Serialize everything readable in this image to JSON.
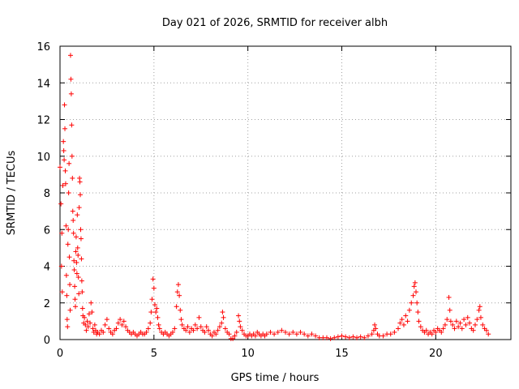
{
  "chart_data": {
    "type": "scatter",
    "title": "Day 021 of 2026, SRMTID for receiver albh",
    "xlabel": "GPS time / hours",
    "ylabel": "SRMTID / TECUs",
    "xlim": [
      0,
      24
    ],
    "ylim": [
      0,
      16
    ],
    "xticks": [
      0,
      5,
      10,
      15,
      20
    ],
    "yticks": [
      0,
      2,
      4,
      6,
      8,
      10,
      12,
      14,
      16
    ],
    "grid": true,
    "marker": "+",
    "color": "#ff0000",
    "series": [
      {
        "name": "SRMTID",
        "points": [
          [
            0.0,
            9.4
          ],
          [
            0.05,
            7.4
          ],
          [
            0.08,
            4.0
          ],
          [
            0.1,
            5.8
          ],
          [
            0.12,
            2.6
          ],
          [
            0.15,
            8.4
          ],
          [
            0.18,
            10.8
          ],
          [
            0.2,
            10.3
          ],
          [
            0.22,
            9.8
          ],
          [
            0.24,
            12.8
          ],
          [
            0.26,
            11.5
          ],
          [
            0.28,
            9.2
          ],
          [
            0.3,
            8.5
          ],
          [
            0.32,
            6.2
          ],
          [
            0.34,
            3.5
          ],
          [
            0.36,
            2.4
          ],
          [
            0.38,
            1.1
          ],
          [
            0.4,
            0.7
          ],
          [
            0.42,
            5.2
          ],
          [
            0.44,
            6.0
          ],
          [
            0.46,
            8.0
          ],
          [
            0.48,
            9.6
          ],
          [
            0.5,
            4.5
          ],
          [
            0.52,
            3.0
          ],
          [
            0.54,
            1.6
          ],
          [
            0.56,
            15.5
          ],
          [
            0.58,
            14.2
          ],
          [
            0.6,
            13.4
          ],
          [
            0.62,
            11.7
          ],
          [
            0.64,
            10.0
          ],
          [
            0.66,
            8.8
          ],
          [
            0.68,
            7.0
          ],
          [
            0.7,
            6.5
          ],
          [
            0.72,
            5.8
          ],
          [
            0.74,
            4.3
          ],
          [
            0.76,
            3.8
          ],
          [
            0.78,
            2.9
          ],
          [
            0.8,
            2.2
          ],
          [
            0.82,
            1.8
          ],
          [
            0.84,
            4.8
          ],
          [
            0.86,
            5.6
          ],
          [
            0.88,
            4.2
          ],
          [
            0.9,
            3.6
          ],
          [
            0.92,
            6.8
          ],
          [
            0.94,
            5.0
          ],
          [
            0.96,
            4.6
          ],
          [
            0.98,
            3.4
          ],
          [
            1.0,
            2.5
          ],
          [
            1.02,
            7.2
          ],
          [
            1.04,
            8.8
          ],
          [
            1.06,
            8.6
          ],
          [
            1.08,
            7.9
          ],
          [
            1.1,
            6.0
          ],
          [
            1.12,
            5.5
          ],
          [
            1.14,
            4.4
          ],
          [
            1.16,
            3.2
          ],
          [
            1.18,
            2.6
          ],
          [
            1.2,
            1.7
          ],
          [
            1.22,
            1.3
          ],
          [
            1.26,
            0.9
          ],
          [
            1.3,
            1.2
          ],
          [
            1.35,
            0.8
          ],
          [
            1.4,
            0.5
          ],
          [
            1.45,
            1.0
          ],
          [
            1.5,
            0.7
          ],
          [
            1.55,
            1.4
          ],
          [
            1.6,
            0.9
          ],
          [
            1.65,
            2.0
          ],
          [
            1.7,
            1.5
          ],
          [
            1.75,
            0.6
          ],
          [
            1.8,
            0.4
          ],
          [
            1.85,
            0.8
          ],
          [
            1.9,
            0.5
          ],
          [
            1.95,
            0.3
          ],
          [
            2.0,
            0.4
          ],
          [
            2.1,
            0.3
          ],
          [
            2.2,
            0.5
          ],
          [
            2.3,
            0.4
          ],
          [
            2.4,
            0.8
          ],
          [
            2.5,
            1.1
          ],
          [
            2.6,
            0.6
          ],
          [
            2.7,
            0.4
          ],
          [
            2.8,
            0.3
          ],
          [
            2.9,
            0.5
          ],
          [
            3.0,
            0.6
          ],
          [
            3.1,
            0.9
          ],
          [
            3.2,
            1.1
          ],
          [
            3.3,
            0.8
          ],
          [
            3.4,
            1.0
          ],
          [
            3.5,
            0.7
          ],
          [
            3.6,
            0.5
          ],
          [
            3.7,
            0.4
          ],
          [
            3.8,
            0.3
          ],
          [
            3.9,
            0.4
          ],
          [
            4.0,
            0.3
          ],
          [
            4.1,
            0.2
          ],
          [
            4.2,
            0.3
          ],
          [
            4.3,
            0.4
          ],
          [
            4.4,
            0.3
          ],
          [
            4.5,
            0.3
          ],
          [
            4.6,
            0.4
          ],
          [
            4.7,
            0.6
          ],
          [
            4.8,
            0.9
          ],
          [
            4.85,
            1.5
          ],
          [
            4.9,
            2.2
          ],
          [
            4.95,
            3.3
          ],
          [
            5.0,
            2.8
          ],
          [
            5.05,
            1.9
          ],
          [
            5.1,
            1.5
          ],
          [
            5.15,
            1.7
          ],
          [
            5.2,
            1.2
          ],
          [
            5.25,
            0.8
          ],
          [
            5.3,
            0.6
          ],
          [
            5.4,
            0.4
          ],
          [
            5.5,
            0.3
          ],
          [
            5.6,
            0.4
          ],
          [
            5.7,
            0.3
          ],
          [
            5.8,
            0.2
          ],
          [
            5.9,
            0.3
          ],
          [
            6.0,
            0.4
          ],
          [
            6.1,
            0.6
          ],
          [
            6.2,
            1.8
          ],
          [
            6.25,
            2.6
          ],
          [
            6.3,
            3.0
          ],
          [
            6.35,
            2.4
          ],
          [
            6.4,
            1.6
          ],
          [
            6.45,
            1.1
          ],
          [
            6.5,
            0.8
          ],
          [
            6.6,
            0.6
          ],
          [
            6.7,
            0.5
          ],
          [
            6.8,
            0.7
          ],
          [
            6.9,
            0.4
          ],
          [
            7.0,
            0.6
          ],
          [
            7.1,
            0.5
          ],
          [
            7.2,
            0.8
          ],
          [
            7.3,
            0.6
          ],
          [
            7.4,
            1.2
          ],
          [
            7.5,
            0.7
          ],
          [
            7.6,
            0.5
          ],
          [
            7.7,
            0.4
          ],
          [
            7.8,
            0.7
          ],
          [
            7.9,
            0.5
          ],
          [
            8.0,
            0.3
          ],
          [
            8.1,
            0.2
          ],
          [
            8.2,
            0.4
          ],
          [
            8.3,
            0.3
          ],
          [
            8.4,
            0.5
          ],
          [
            8.5,
            0.7
          ],
          [
            8.6,
            0.9
          ],
          [
            8.65,
            1.5
          ],
          [
            8.7,
            1.2
          ],
          [
            8.8,
            0.6
          ],
          [
            8.9,
            0.4
          ],
          [
            9.0,
            0.3
          ],
          [
            9.1,
            0.05
          ],
          [
            9.2,
            0.05
          ],
          [
            9.3,
            0.2
          ],
          [
            9.4,
            0.4
          ],
          [
            9.5,
            1.3
          ],
          [
            9.55,
            1.0
          ],
          [
            9.6,
            0.7
          ],
          [
            9.7,
            0.5
          ],
          [
            9.8,
            0.3
          ],
          [
            9.9,
            0.2
          ],
          [
            10.0,
            0.2
          ],
          [
            10.1,
            0.3
          ],
          [
            10.2,
            0.2
          ],
          [
            10.3,
            0.3
          ],
          [
            10.4,
            0.2
          ],
          [
            10.5,
            0.4
          ],
          [
            10.6,
            0.3
          ],
          [
            10.7,
            0.2
          ],
          [
            10.8,
            0.3
          ],
          [
            10.9,
            0.2
          ],
          [
            11.0,
            0.3
          ],
          [
            11.2,
            0.4
          ],
          [
            11.4,
            0.3
          ],
          [
            11.6,
            0.4
          ],
          [
            11.8,
            0.5
          ],
          [
            12.0,
            0.4
          ],
          [
            12.2,
            0.3
          ],
          [
            12.4,
            0.4
          ],
          [
            12.6,
            0.3
          ],
          [
            12.8,
            0.4
          ],
          [
            13.0,
            0.3
          ],
          [
            13.2,
            0.2
          ],
          [
            13.4,
            0.3
          ],
          [
            13.6,
            0.2
          ],
          [
            13.8,
            0.1
          ],
          [
            14.0,
            0.1
          ],
          [
            14.2,
            0.1
          ],
          [
            14.4,
            0.05
          ],
          [
            14.6,
            0.1
          ],
          [
            14.8,
            0.15
          ],
          [
            15.0,
            0.2
          ],
          [
            15.2,
            0.15
          ],
          [
            15.4,
            0.1
          ],
          [
            15.6,
            0.15
          ],
          [
            15.8,
            0.1
          ],
          [
            16.0,
            0.15
          ],
          [
            16.2,
            0.1
          ],
          [
            16.4,
            0.2
          ],
          [
            16.6,
            0.3
          ],
          [
            16.7,
            0.5
          ],
          [
            16.75,
            0.8
          ],
          [
            16.8,
            0.6
          ],
          [
            16.9,
            0.3
          ],
          [
            17.0,
            0.2
          ],
          [
            17.2,
            0.2
          ],
          [
            17.4,
            0.3
          ],
          [
            17.6,
            0.3
          ],
          [
            17.8,
            0.4
          ],
          [
            18.0,
            0.6
          ],
          [
            18.1,
            0.9
          ],
          [
            18.2,
            1.1
          ],
          [
            18.3,
            0.8
          ],
          [
            18.4,
            1.3
          ],
          [
            18.5,
            1.0
          ],
          [
            18.6,
            1.6
          ],
          [
            18.7,
            2.0
          ],
          [
            18.8,
            2.4
          ],
          [
            18.85,
            2.9
          ],
          [
            18.9,
            3.1
          ],
          [
            18.95,
            2.6
          ],
          [
            19.0,
            2.0
          ],
          [
            19.05,
            1.5
          ],
          [
            19.1,
            1.0
          ],
          [
            19.2,
            0.7
          ],
          [
            19.3,
            0.5
          ],
          [
            19.4,
            0.4
          ],
          [
            19.5,
            0.5
          ],
          [
            19.6,
            0.3
          ],
          [
            19.7,
            0.4
          ],
          [
            19.8,
            0.3
          ],
          [
            19.9,
            0.5
          ],
          [
            20.0,
            0.4
          ],
          [
            20.1,
            0.6
          ],
          [
            20.2,
            0.5
          ],
          [
            20.3,
            0.4
          ],
          [
            20.4,
            0.6
          ],
          [
            20.5,
            0.8
          ],
          [
            20.6,
            1.1
          ],
          [
            20.7,
            2.3
          ],
          [
            20.75,
            1.6
          ],
          [
            20.8,
            1.0
          ],
          [
            20.9,
            0.8
          ],
          [
            21.0,
            0.6
          ],
          [
            21.1,
            1.0
          ],
          [
            21.2,
            0.7
          ],
          [
            21.3,
            0.9
          ],
          [
            21.4,
            0.6
          ],
          [
            21.5,
            1.1
          ],
          [
            21.6,
            0.8
          ],
          [
            21.7,
            1.2
          ],
          [
            21.8,
            0.9
          ],
          [
            21.9,
            0.6
          ],
          [
            22.0,
            0.5
          ],
          [
            22.1,
            0.8
          ],
          [
            22.2,
            1.1
          ],
          [
            22.3,
            1.6
          ],
          [
            22.35,
            1.8
          ],
          [
            22.4,
            1.2
          ],
          [
            22.5,
            0.8
          ],
          [
            22.6,
            0.6
          ],
          [
            22.7,
            0.5
          ],
          [
            22.8,
            0.3
          ]
        ]
      }
    ]
  }
}
